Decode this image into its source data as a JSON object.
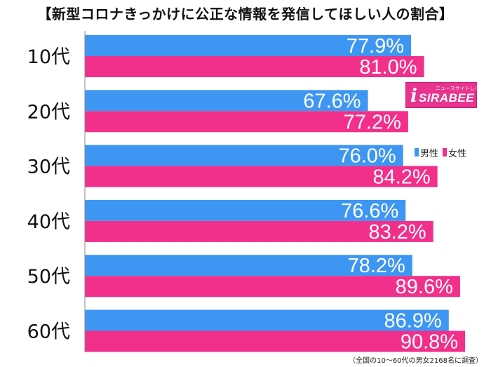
{
  "title": "【新型コロナきっかけに公正な情報を発信してほしい人の割合】",
  "footnote": "（全国の10〜60代の男女2168名に調査）",
  "logo": {
    "brand": "SIRABEE",
    "tagline": "ニュースサイトしらべぇ"
  },
  "colors": {
    "male": "#3d97f2",
    "female": "#f22f8a",
    "axis": "#888888"
  },
  "chart_data": {
    "type": "bar",
    "orientation": "horizontal",
    "categories": [
      "10代",
      "20代",
      "30代",
      "40代",
      "50代",
      "60代"
    ],
    "series": [
      {
        "name": "男性",
        "values": [
          77.9,
          67.6,
          76.0,
          76.6,
          78.2,
          86.9
        ],
        "labels": [
          "77.9%",
          "67.6%",
          "76.0%",
          "76.6%",
          "78.2%",
          "86.9%"
        ]
      },
      {
        "name": "女性",
        "values": [
          81.0,
          77.2,
          84.2,
          83.2,
          89.6,
          90.8
        ],
        "labels": [
          "81.0%",
          "77.2%",
          "84.2%",
          "83.2%",
          "89.6%",
          "90.8%"
        ]
      }
    ],
    "xlim": [
      0,
      100
    ],
    "legend": "right"
  }
}
